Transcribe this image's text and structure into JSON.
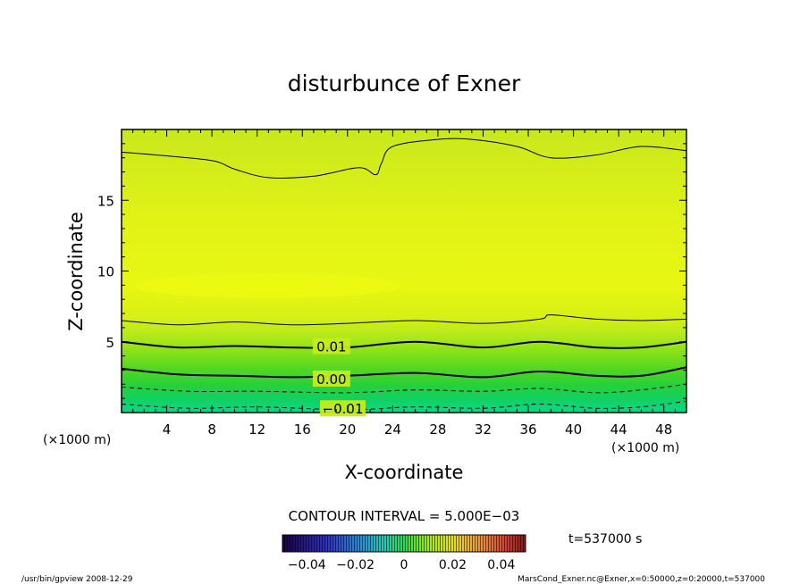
{
  "chart_data": {
    "type": "heatmap",
    "title": "disturbunce of Exner",
    "xlabel": "X-coordinate",
    "ylabel": "Z-coordinate",
    "x_unit": "(×1000 m)",
    "x_unit_left": "(×1000 m)",
    "xlim": [
      0,
      50
    ],
    "ylim": [
      0,
      20
    ],
    "x_ticks": [
      4,
      8,
      12,
      16,
      20,
      24,
      28,
      32,
      36,
      40,
      44,
      48
    ],
    "y_ticks": [
      5,
      10,
      15
    ],
    "contour_labels": [
      {
        "text": "0.01",
        "x": 17,
        "y": 4.7
      },
      {
        "text": "0.00",
        "x": 17,
        "y": 2.4
      },
      {
        "text": "−0.01",
        "x": 18,
        "y": 0.3
      }
    ],
    "contours": [
      {
        "level": -0.015,
        "style": "dashed",
        "x": [
          0,
          6,
          12,
          20,
          26,
          32,
          37,
          42,
          46,
          50
        ],
        "y": [
          0.6,
          0.3,
          0.4,
          0.2,
          0.4,
          0.3,
          0.6,
          0.3,
          0.4,
          0.8
        ]
      },
      {
        "level": -0.01,
        "style": "dashed",
        "x": [
          0,
          6,
          12,
          20,
          26,
          32,
          37,
          42,
          46,
          50
        ],
        "y": [
          1.8,
          1.5,
          1.5,
          1.4,
          1.6,
          1.5,
          1.7,
          1.4,
          1.6,
          2.0
        ]
      },
      {
        "level": 0.0,
        "style": "solid-bold",
        "x": [
          0,
          5,
          10,
          15,
          20,
          26,
          32,
          37,
          42,
          46,
          50
        ],
        "y": [
          3.1,
          2.7,
          2.6,
          2.5,
          2.6,
          2.8,
          2.5,
          2.9,
          2.6,
          2.6,
          3.2
        ]
      },
      {
        "level": 0.01,
        "style": "solid-bold",
        "x": [
          0,
          5,
          10,
          15,
          20,
          26,
          32,
          37,
          42,
          46,
          50
        ],
        "y": [
          5.0,
          4.6,
          4.7,
          4.6,
          4.6,
          5.0,
          4.6,
          5.0,
          4.6,
          4.6,
          5.0
        ]
      },
      {
        "level": 0.015,
        "style": "solid",
        "x": [
          0,
          5,
          10,
          15,
          20,
          26,
          32,
          37,
          38,
          42,
          46,
          50
        ],
        "y": [
          6.5,
          6.2,
          6.4,
          6.2,
          6.3,
          6.5,
          6.3,
          6.6,
          6.9,
          6.6,
          6.5,
          6.6
        ]
      },
      {
        "level": 0.02,
        "style": "solid",
        "x": [
          0,
          3,
          8,
          10,
          13,
          17,
          21,
          22.5,
          23,
          24,
          28,
          31,
          35,
          38,
          42,
          46,
          50
        ],
        "y": [
          18.4,
          18.2,
          17.8,
          17.2,
          16.6,
          16.7,
          17.3,
          16.8,
          17.6,
          18.8,
          19.3,
          19.3,
          18.8,
          18.0,
          18.2,
          18.8,
          18.5
        ]
      }
    ],
    "colorbar": {
      "ticks": [
        "−0.04",
        "−0.02",
        "0",
        "0.02",
        "0.04"
      ],
      "tick_values": [
        -0.04,
        -0.02,
        0,
        0.02,
        0.04
      ],
      "range": [
        -0.05,
        0.05
      ]
    },
    "grid": false,
    "legend": "bottom"
  },
  "contour_interval": "CONTOUR INTERVAL = 5.000E−03",
  "time_label": "t=537000 s",
  "footer_left": "/usr/bin/gpview  2008-12-29",
  "footer_right": "MarsCond_Exner.nc@Exner,x=0:50000,z=0:20000,t=537000"
}
